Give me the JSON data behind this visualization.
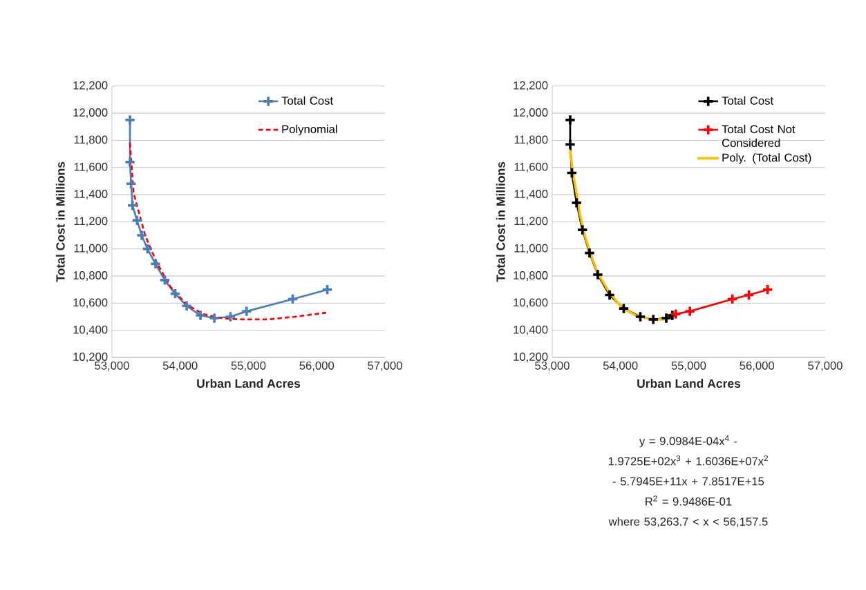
{
  "chart_data": [
    {
      "type": "line",
      "xlabel": "Urban Land Acres",
      "ylabel": "Total Cost in Millions",
      "xlim": [
        53000,
        57000
      ],
      "ylim": [
        10200,
        12200
      ],
      "xticks": [
        {
          "value": 53000,
          "label": "53,000"
        },
        {
          "value": 54000,
          "label": "54,000"
        },
        {
          "value": 55000,
          "label": "55,000"
        },
        {
          "value": 56000,
          "label": "56,000"
        },
        {
          "value": 57000,
          "label": "57,000"
        }
      ],
      "yticks": [
        {
          "value": 10200,
          "label": "10,200"
        },
        {
          "value": 10400,
          "label": "10,400"
        },
        {
          "value": 10600,
          "label": "10,600"
        },
        {
          "value": 10800,
          "label": "10,800"
        },
        {
          "value": 11000,
          "label": "11,000"
        },
        {
          "value": 11200,
          "label": "11,200"
        },
        {
          "value": 11400,
          "label": "11,400"
        },
        {
          "value": 11600,
          "label": "11,600"
        },
        {
          "value": 11800,
          "label": "11,800"
        },
        {
          "value": 12000,
          "label": "12,000"
        },
        {
          "value": 12200,
          "label": "12,200"
        }
      ],
      "grid": "y",
      "legend": "top right",
      "series": [
        {
          "name": "Total Cost",
          "color": "#4a7ebb",
          "marker": "cross",
          "line_style": "solid",
          "x": [
            53264,
            53264,
            53280,
            53301,
            53368,
            53436,
            53520,
            53638,
            53774,
            53926,
            54094,
            54297,
            54500,
            54736,
            54973,
            55648,
            56155
          ],
          "values": [
            11950,
            11640,
            11480,
            11320,
            11210,
            11100,
            11000,
            10890,
            10770,
            10670,
            10580,
            10510,
            10490,
            10500,
            10540,
            10630,
            10700
          ]
        },
        {
          "name": "Polynomial",
          "color": "#ff0000",
          "marker": "none",
          "line_style": "dashed",
          "x": [
            53264,
            53318,
            53486,
            53655,
            53858,
            54094,
            54331,
            54601,
            54871,
            55277,
            55682,
            56138
          ],
          "values": [
            11780,
            11410,
            11100,
            10900,
            10720,
            10590,
            10520,
            10490,
            10480,
            10480,
            10500,
            10530
          ]
        }
      ]
    },
    {
      "type": "line",
      "xlabel": "Urban Land Acres",
      "ylabel": "Total Cost in Millions",
      "xlim": [
        53000,
        57000
      ],
      "ylim": [
        10200,
        12200
      ],
      "xticks": [
        {
          "value": 53000,
          "label": "53,000"
        },
        {
          "value": 54000,
          "label": "54,000"
        },
        {
          "value": 55000,
          "label": "55,000"
        },
        {
          "value": 56000,
          "label": "56,000"
        },
        {
          "value": 57000,
          "label": "57,000"
        }
      ],
      "yticks": [
        {
          "value": 10200,
          "label": "10,200"
        },
        {
          "value": 10400,
          "label": "10,400"
        },
        {
          "value": 10600,
          "label": "10,600"
        },
        {
          "value": 10800,
          "label": "10,800"
        },
        {
          "value": 11000,
          "label": "11,000"
        },
        {
          "value": 11200,
          "label": "11,200"
        },
        {
          "value": 11400,
          "label": "11,400"
        },
        {
          "value": 11600,
          "label": "11,600"
        },
        {
          "value": 11800,
          "label": "11,800"
        },
        {
          "value": 12000,
          "label": "12,000"
        },
        {
          "value": 12200,
          "label": "12,200"
        }
      ],
      "grid": "y",
      "legend": "top right",
      "series": [
        {
          "name": "Total Cost",
          "color": "#000000",
          "marker": "cross",
          "line_style": "solid",
          "x": [
            53263,
            53263,
            53287,
            53356,
            53443,
            53547,
            53668,
            53841,
            54048,
            54291,
            54481,
            54671,
            54760
          ],
          "values": [
            11950,
            11770,
            11560,
            11340,
            11140,
            10970,
            10810,
            10660,
            10560,
            10500,
            10480,
            10490,
            10510
          ]
        },
        {
          "name": "Total Cost Not Considered",
          "color": "#ff0000",
          "marker": "cross",
          "line_style": "solid",
          "x": [
            54810,
            55017,
            55640,
            55882,
            56157
          ],
          "values": [
            10520,
            10540,
            10630,
            10660,
            10700
          ]
        },
        {
          "name": "Poly. (Total Cost)",
          "color": "#ffc000",
          "marker": "none",
          "line_style": "dotted",
          "x": [
            53263,
            53304,
            53356,
            53408,
            53477,
            53564,
            53668,
            53824,
            54014,
            54221,
            54481,
            54637,
            54740
          ],
          "values": [
            11720,
            11560,
            11410,
            11250,
            11100,
            10960,
            10820,
            10690,
            10570,
            10510,
            10480,
            10480,
            10520
          ]
        }
      ],
      "annotations": [
        "y = 9.0984E-04x$^{4}$ - 1.9725E+02x$^{3}$ + 1.6036E+07x$^{2}$ - 5.7945E+11x + 7.8517E+15",
        "R$^{2}$ = 9.9486E-01",
        "where 53,263.7 < x < 56,157.5"
      ]
    }
  ]
}
